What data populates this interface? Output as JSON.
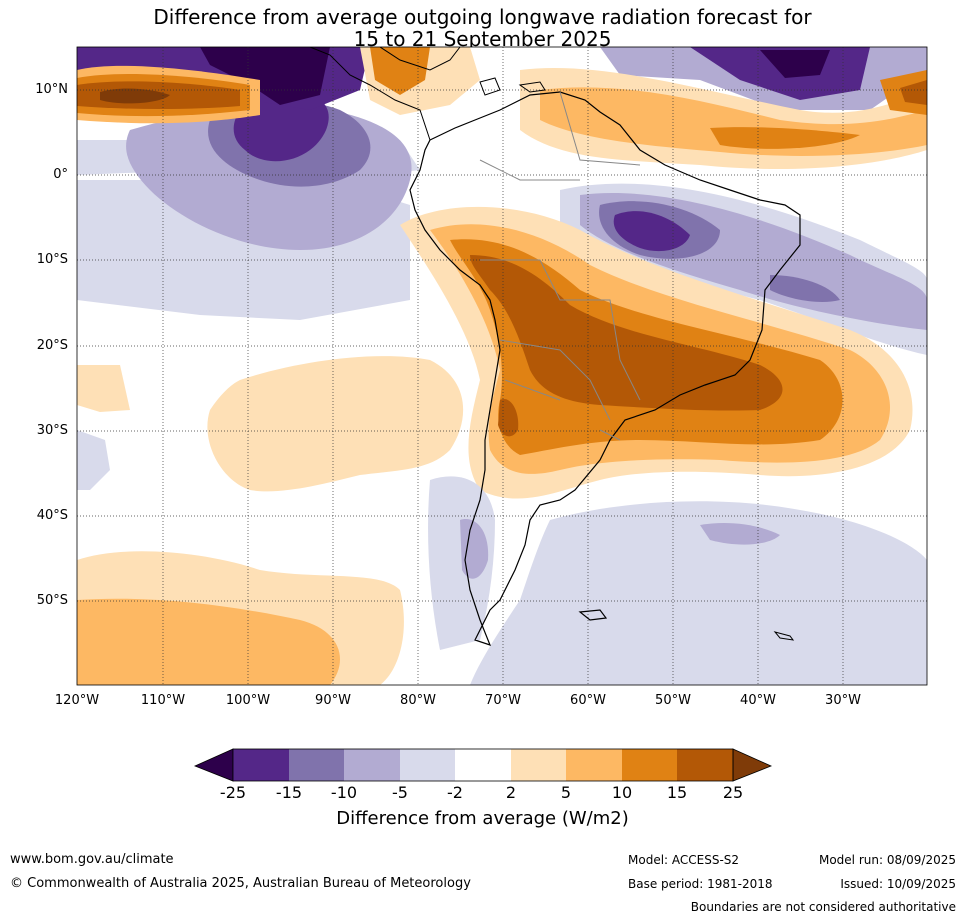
{
  "title": {
    "line1": "Difference from average outgoing longwave radiation forecast for",
    "line2": "15 to 21 September 2025"
  },
  "map": {
    "lat_labels": [
      "10°N",
      "0°",
      "10°S",
      "20°S",
      "30°S",
      "40°S",
      "50°S"
    ],
    "lon_labels": [
      "120°W",
      "110°W",
      "100°W",
      "90°W",
      "80°W",
      "70°W",
      "60°W",
      "50°W",
      "40°W",
      "30°W"
    ]
  },
  "legend": {
    "title": "Difference from average (W/m2)",
    "ticks": [
      "-25",
      "-15",
      "-10",
      "-5",
      "-2",
      "2",
      "5",
      "10",
      "15",
      "25"
    ],
    "colors": [
      "#2d004b",
      "#542788",
      "#8073ac",
      "#b2abd2",
      "#d8daeb",
      "#ffffff",
      "#fee0b6",
      "#fdb863",
      "#e08214",
      "#b35806",
      "#7f3b08"
    ]
  },
  "footer": {
    "website": "www.bom.gov.au/climate",
    "copyright": "© Commonwealth of Australia 2025, Australian Bureau of Meteorology",
    "model": "Model: ACCESS-S2",
    "base_period": "Base period: 1981-2018",
    "model_run": "Model run: 08/09/2025",
    "issued": "Issued: 10/09/2025",
    "disclaimer": "Boundaries are not considered authoritative"
  }
}
